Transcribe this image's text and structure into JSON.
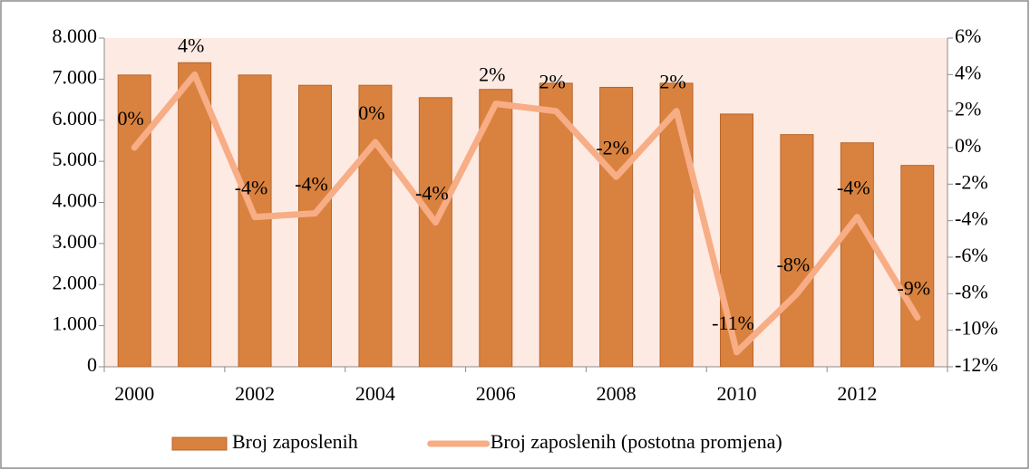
{
  "chart_data": {
    "type": "bar-line",
    "categories": [
      "2000",
      null,
      "2002",
      null,
      "2004",
      null,
      "2006",
      null,
      "2008",
      null,
      "2010",
      null,
      "2012",
      null
    ],
    "series": [
      {
        "name": "Broj zaposlenih",
        "type": "bar",
        "color": "#d9823f",
        "values": [
          7100,
          7400,
          7100,
          6850,
          6850,
          6550,
          6750,
          6900,
          6800,
          6900,
          6150,
          5650,
          5450,
          4900
        ]
      },
      {
        "name": "Broj zaposlenih (postotna promjena)",
        "type": "line",
        "axis": "y2",
        "color": "#f7ad85",
        "values": [
          0,
          4,
          -3.8,
          -3.6,
          0.3,
          -4.1,
          2.4,
          2,
          -1.6,
          2,
          -11.2,
          -8,
          -3.8,
          -9.3
        ],
        "value_labels": [
          "0%",
          "4%",
          "-4%",
          "-4%",
          "0%",
          "-4%",
          "2%",
          "2%",
          "-2%",
          "2%",
          "-11%",
          "-8%",
          "-4%",
          "-9%"
        ]
      }
    ],
    "ylim": [
      0,
      8000
    ],
    "yticks": [
      0,
      {
        "value": 1000,
        "label": "1.000"
      },
      {
        "value": 2000,
        "label": "2.000"
      },
      {
        "value": 3000,
        "label": "3.000"
      },
      {
        "value": 4000,
        "label": "4.000"
      },
      {
        "value": 5000,
        "label": "5.000"
      },
      {
        "value": 6000,
        "label": "6.000"
      },
      {
        "value": 7000,
        "label": "7.000"
      },
      {
        "value": 8000,
        "label": "8.000"
      }
    ],
    "y2lim": [
      -12,
      6
    ],
    "y2ticks": [
      {
        "value": -12,
        "label": "-12%"
      },
      {
        "value": -10,
        "label": "-10%"
      },
      {
        "value": -8,
        "label": "-8%"
      },
      {
        "value": -6,
        "label": "-6%"
      },
      {
        "value": -4,
        "label": "-4%"
      },
      {
        "value": -2,
        "label": "-2%"
      },
      {
        "value": 0,
        "label": "0%"
      },
      {
        "value": 2,
        "label": "2%"
      },
      {
        "value": 4,
        "label": "4%"
      },
      {
        "value": 6,
        "label": "6%"
      }
    ],
    "legend": "bottom"
  }
}
